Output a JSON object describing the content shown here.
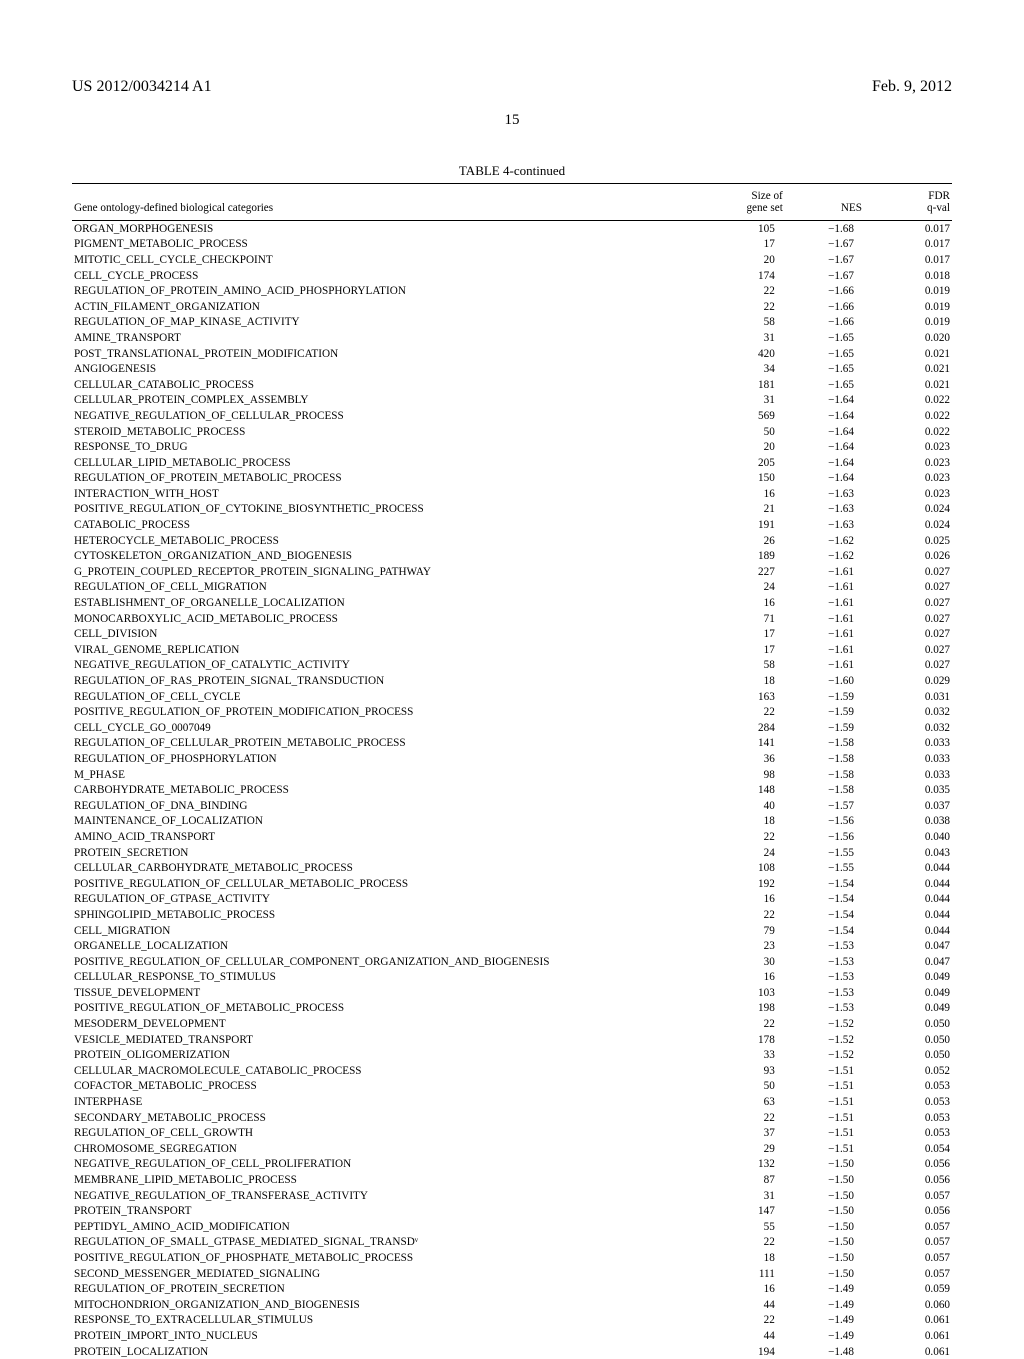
{
  "header": {
    "left": "US 2012/0034214 A1",
    "right": "Feb. 9, 2012"
  },
  "page_number": "15",
  "table": {
    "title": "TABLE 4-continued",
    "columns": {
      "category": "Gene ontology-defined biological categories",
      "size": "Size of\ngene set",
      "nes": "NES",
      "fdr": "FDR\nq-val"
    },
    "rows": [
      {
        "cat": "ORGAN_MORPHOGENESIS",
        "size": "105",
        "nes": "−1.68",
        "fdr": "0.017"
      },
      {
        "cat": "PIGMENT_METABOLIC_PROCESS",
        "size": "17",
        "nes": "−1.67",
        "fdr": "0.017"
      },
      {
        "cat": "MITOTIC_CELL_CYCLE_CHECKPOINT",
        "size": "20",
        "nes": "−1.67",
        "fdr": "0.017"
      },
      {
        "cat": "CELL_CYCLE_PROCESS",
        "size": "174",
        "nes": "−1.67",
        "fdr": "0.018"
      },
      {
        "cat": "REGULATION_OF_PROTEIN_AMINO_ACID_PHOSPHORYLATION",
        "size": "22",
        "nes": "−1.66",
        "fdr": "0.019"
      },
      {
        "cat": "ACTIN_FILAMENT_ORGANIZATION",
        "size": "22",
        "nes": "−1.66",
        "fdr": "0.019"
      },
      {
        "cat": "REGULATION_OF_MAP_KINASE_ACTIVITY",
        "size": "58",
        "nes": "−1.66",
        "fdr": "0.019"
      },
      {
        "cat": "AMINE_TRANSPORT",
        "size": "31",
        "nes": "−1.65",
        "fdr": "0.020"
      },
      {
        "cat": "POST_TRANSLATIONAL_PROTEIN_MODIFICATION",
        "size": "420",
        "nes": "−1.65",
        "fdr": "0.021"
      },
      {
        "cat": "ANGIOGENESIS",
        "size": "34",
        "nes": "−1.65",
        "fdr": "0.021"
      },
      {
        "cat": "CELLULAR_CATABOLIC_PROCESS",
        "size": "181",
        "nes": "−1.65",
        "fdr": "0.021"
      },
      {
        "cat": "CELLULAR_PROTEIN_COMPLEX_ASSEMBLY",
        "size": "31",
        "nes": "−1.64",
        "fdr": "0.022"
      },
      {
        "cat": "NEGATIVE_REGULATION_OF_CELLULAR_PROCESS",
        "size": "569",
        "nes": "−1.64",
        "fdr": "0.022"
      },
      {
        "cat": "STEROID_METABOLIC_PROCESS",
        "size": "50",
        "nes": "−1.64",
        "fdr": "0.022"
      },
      {
        "cat": "RESPONSE_TO_DRUG",
        "size": "20",
        "nes": "−1.64",
        "fdr": "0.023"
      },
      {
        "cat": "CELLULAR_LIPID_METABOLIC_PROCESS",
        "size": "205",
        "nes": "−1.64",
        "fdr": "0.023"
      },
      {
        "cat": "REGULATION_OF_PROTEIN_METABOLIC_PROCESS",
        "size": "150",
        "nes": "−1.64",
        "fdr": "0.023"
      },
      {
        "cat": "INTERACTION_WITH_HOST",
        "size": "16",
        "nes": "−1.63",
        "fdr": "0.023"
      },
      {
        "cat": "POSITIVE_REGULATION_OF_CYTOKINE_BIOSYNTHETIC_PROCESS",
        "size": "21",
        "nes": "−1.63",
        "fdr": "0.024"
      },
      {
        "cat": "CATABOLIC_PROCESS",
        "size": "191",
        "nes": "−1.63",
        "fdr": "0.024"
      },
      {
        "cat": "HETEROCYCLE_METABOLIC_PROCESS",
        "size": "26",
        "nes": "−1.62",
        "fdr": "0.025"
      },
      {
        "cat": "CYTOSKELETON_ORGANIZATION_AND_BIOGENESIS",
        "size": "189",
        "nes": "−1.62",
        "fdr": "0.026"
      },
      {
        "cat": "G_PROTEIN_COUPLED_RECEPTOR_PROTEIN_SIGNALING_PATHWAY",
        "size": "227",
        "nes": "−1.61",
        "fdr": "0.027"
      },
      {
        "cat": "REGULATION_OF_CELL_MIGRATION",
        "size": "24",
        "nes": "−1.61",
        "fdr": "0.027"
      },
      {
        "cat": "ESTABLISHMENT_OF_ORGANELLE_LOCALIZATION",
        "size": "16",
        "nes": "−1.61",
        "fdr": "0.027"
      },
      {
        "cat": "MONOCARBOXYLIC_ACID_METABOLIC_PROCESS",
        "size": "71",
        "nes": "−1.61",
        "fdr": "0.027"
      },
      {
        "cat": "CELL_DIVISION",
        "size": "17",
        "nes": "−1.61",
        "fdr": "0.027"
      },
      {
        "cat": "VIRAL_GENOME_REPLICATION",
        "size": "17",
        "nes": "−1.61",
        "fdr": "0.027"
      },
      {
        "cat": "NEGATIVE_REGULATION_OF_CATALYTIC_ACTIVITY",
        "size": "58",
        "nes": "−1.61",
        "fdr": "0.027"
      },
      {
        "cat": "REGULATION_OF_RAS_PROTEIN_SIGNAL_TRANSDUCTION",
        "size": "18",
        "nes": "−1.60",
        "fdr": "0.029"
      },
      {
        "cat": "REGULATION_OF_CELL_CYCLE",
        "size": "163",
        "nes": "−1.59",
        "fdr": "0.031"
      },
      {
        "cat": "POSITIVE_REGULATION_OF_PROTEIN_MODIFICATION_PROCESS",
        "size": "22",
        "nes": "−1.59",
        "fdr": "0.032"
      },
      {
        "cat": "CELL_CYCLE_GO_0007049",
        "size": "284",
        "nes": "−1.59",
        "fdr": "0.032"
      },
      {
        "cat": "REGULATION_OF_CELLULAR_PROTEIN_METABOLIC_PROCESS",
        "size": "141",
        "nes": "−1.58",
        "fdr": "0.033"
      },
      {
        "cat": "REGULATION_OF_PHOSPHORYLATION",
        "size": "36",
        "nes": "−1.58",
        "fdr": "0.033"
      },
      {
        "cat": "M_PHASE",
        "size": "98",
        "nes": "−1.58",
        "fdr": "0.033"
      },
      {
        "cat": "CARBOHYDRATE_METABOLIC_PROCESS",
        "size": "148",
        "nes": "−1.58",
        "fdr": "0.035"
      },
      {
        "cat": "REGULATION_OF_DNA_BINDING",
        "size": "40",
        "nes": "−1.57",
        "fdr": "0.037"
      },
      {
        "cat": "MAINTENANCE_OF_LOCALIZATION",
        "size": "18",
        "nes": "−1.56",
        "fdr": "0.038"
      },
      {
        "cat": "AMINO_ACID_TRANSPORT",
        "size": "22",
        "nes": "−1.56",
        "fdr": "0.040"
      },
      {
        "cat": "PROTEIN_SECRETION",
        "size": "24",
        "nes": "−1.55",
        "fdr": "0.043"
      },
      {
        "cat": "CELLULAR_CARBOHYDRATE_METABOLIC_PROCESS",
        "size": "108",
        "nes": "−1.55",
        "fdr": "0.044"
      },
      {
        "cat": "POSITIVE_REGULATION_OF_CELLULAR_METABOLIC_PROCESS",
        "size": "192",
        "nes": "−1.54",
        "fdr": "0.044"
      },
      {
        "cat": "REGULATION_OF_GTPASE_ACTIVITY",
        "size": "16",
        "nes": "−1.54",
        "fdr": "0.044"
      },
      {
        "cat": "SPHINGOLIPID_METABOLIC_PROCESS",
        "size": "22",
        "nes": "−1.54",
        "fdr": "0.044"
      },
      {
        "cat": "CELL_MIGRATION",
        "size": "79",
        "nes": "−1.54",
        "fdr": "0.044"
      },
      {
        "cat": "ORGANELLE_LOCALIZATION",
        "size": "23",
        "nes": "−1.53",
        "fdr": "0.047"
      },
      {
        "cat": "POSITIVE_REGULATION_OF_CELLULAR_COMPONENT_ORGANIZATION_AND_BIOGENESIS",
        "size": "30",
        "nes": "−1.53",
        "fdr": "0.047"
      },
      {
        "cat": "CELLULAR_RESPONSE_TO_STIMULUS",
        "size": "16",
        "nes": "−1.53",
        "fdr": "0.049"
      },
      {
        "cat": "TISSUE_DEVELOPMENT",
        "size": "103",
        "nes": "−1.53",
        "fdr": "0.049"
      },
      {
        "cat": "POSITIVE_REGULATION_OF_METABOLIC_PROCESS",
        "size": "198",
        "nes": "−1.53",
        "fdr": "0.049"
      },
      {
        "cat": "MESODERM_DEVELOPMENT",
        "size": "22",
        "nes": "−1.52",
        "fdr": "0.050"
      },
      {
        "cat": "VESICLE_MEDIATED_TRANSPORT",
        "size": "178",
        "nes": "−1.52",
        "fdr": "0.050"
      },
      {
        "cat": "PROTEIN_OLIGOMERIZATION",
        "size": "33",
        "nes": "−1.52",
        "fdr": "0.050"
      },
      {
        "cat": "CELLULAR_MACROMOLECULE_CATABOLIC_PROCESS",
        "size": "93",
        "nes": "−1.51",
        "fdr": "0.052"
      },
      {
        "cat": "COFACTOR_METABOLIC_PROCESS",
        "size": "50",
        "nes": "−1.51",
        "fdr": "0.053"
      },
      {
        "cat": "INTERPHASE",
        "size": "63",
        "nes": "−1.51",
        "fdr": "0.053"
      },
      {
        "cat": "SECONDARY_METABOLIC_PROCESS",
        "size": "22",
        "nes": "−1.51",
        "fdr": "0.053"
      },
      {
        "cat": "REGULATION_OF_CELL_GROWTH",
        "size": "37",
        "nes": "−1.51",
        "fdr": "0.053"
      },
      {
        "cat": "CHROMOSOME_SEGREGATION",
        "size": "29",
        "nes": "−1.51",
        "fdr": "0.054"
      },
      {
        "cat": "NEGATIVE_REGULATION_OF_CELL_PROLIFERATION",
        "size": "132",
        "nes": "−1.50",
        "fdr": "0.056"
      },
      {
        "cat": "MEMBRANE_LIPID_METABOLIC_PROCESS",
        "size": "87",
        "nes": "−1.50",
        "fdr": "0.056"
      },
      {
        "cat": "NEGATIVE_REGULATION_OF_TRANSFERASE_ACTIVITY",
        "size": "31",
        "nes": "−1.50",
        "fdr": "0.057"
      },
      {
        "cat": "PROTEIN_TRANSPORT",
        "size": "147",
        "nes": "−1.50",
        "fdr": "0.056"
      },
      {
        "cat": "PEPTIDYL_AMINO_ACID_MODIFICATION",
        "size": "55",
        "nes": "−1.50",
        "fdr": "0.057"
      },
      {
        "cat": "REGULATION_OF_SMALL_GTPASE_MEDIATED_SIGNAL_TRANSDᵛ",
        "size": "22",
        "nes": "−1.50",
        "fdr": "0.057"
      },
      {
        "cat": "POSITIVE_REGULATION_OF_PHOSPHATE_METABOLIC_PROCESS",
        "size": "18",
        "nes": "−1.50",
        "fdr": "0.057"
      },
      {
        "cat": "SECOND_MESSENGER_MEDIATED_SIGNALING",
        "size": "111",
        "nes": "−1.50",
        "fdr": "0.057"
      },
      {
        "cat": "REGULATION_OF_PROTEIN_SECRETION",
        "size": "16",
        "nes": "−1.49",
        "fdr": "0.059"
      },
      {
        "cat": "MITOCHONDRION_ORGANIZATION_AND_BIOGENESIS",
        "size": "44",
        "nes": "−1.49",
        "fdr": "0.060"
      },
      {
        "cat": "RESPONSE_TO_EXTRACELLULAR_STIMULUS",
        "size": "22",
        "nes": "−1.49",
        "fdr": "0.061"
      },
      {
        "cat": "PROTEIN_IMPORT_INTO_NUCLEUS",
        "size": "44",
        "nes": "−1.49",
        "fdr": "0.061"
      },
      {
        "cat": "PROTEIN_LOCALIZATION",
        "size": "194",
        "nes": "−1.48",
        "fdr": "0.061"
      }
    ]
  }
}
